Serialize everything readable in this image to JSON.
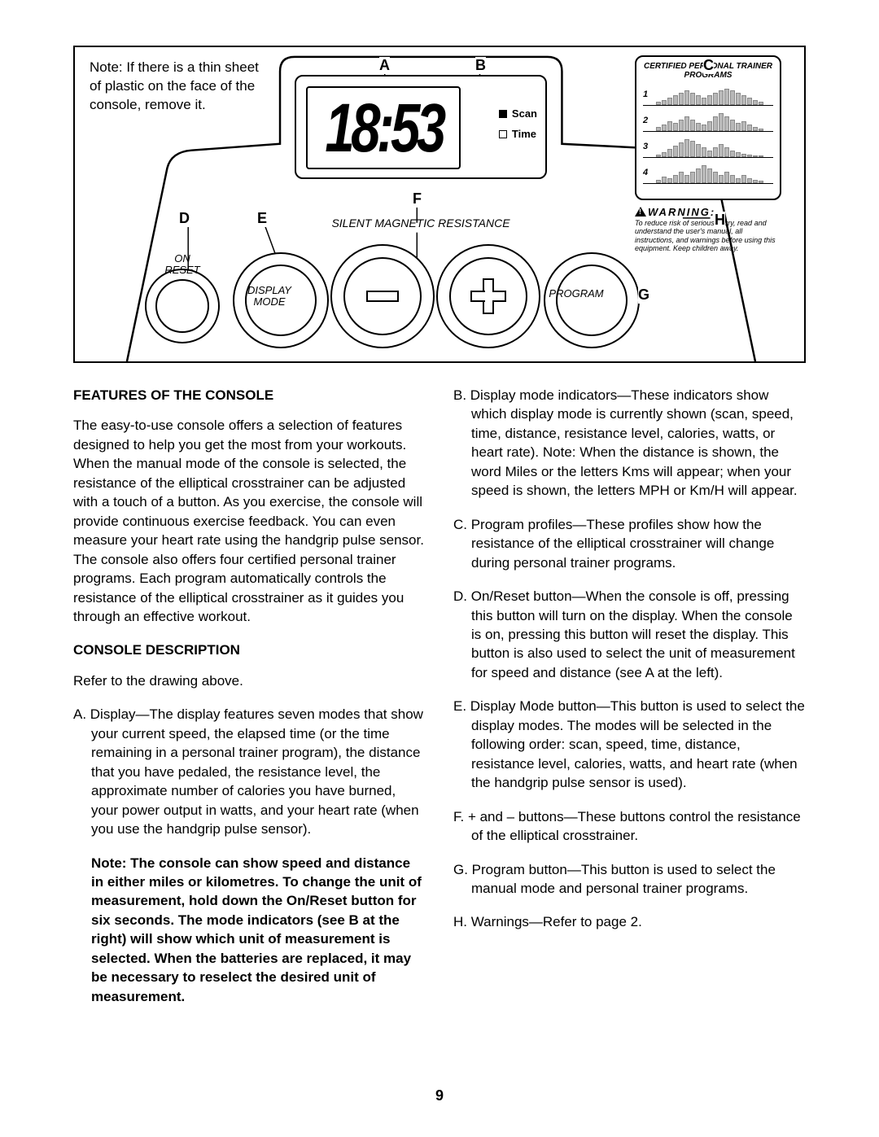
{
  "note_text": "Note: If there is a thin sheet of plastic on the face of the console, remove it.",
  "callouts": {
    "A": "A",
    "B": "B",
    "C": "C",
    "D": "D",
    "E": "E",
    "F": "F",
    "G": "G",
    "H": "H"
  },
  "display": {
    "value": "18:53",
    "scan": "Scan",
    "time": "Time"
  },
  "programs": {
    "title": "CERTIFIED PERSONAL TRAINER PROGRAMS",
    "nums": [
      "1",
      "2",
      "3",
      "4"
    ]
  },
  "warning": {
    "title": "WARNING:",
    "text": "To reduce risk of serious injury, read and understand the user's manual, all instructions, and warnings before using this equipment. Keep children away."
  },
  "smr_label": "SILENT MAGNETIC RESISTANCE",
  "btn_labels": {
    "on": "ON\nRESET",
    "disp": "DISPLAY\nMODE",
    "prog": "PROGRAM"
  },
  "headings": {
    "features": "FEATURES OF THE CONSOLE",
    "desc": "CONSOLE DESCRIPTION"
  },
  "paras": {
    "features": "The easy-to-use console offers a selection of features designed to help you get the most from your workouts. When the manual mode of the console is selected, the resistance of the elliptical crosstrainer can be adjusted with a touch of a button. As you exercise, the console will provide continuous exercise feedback. You can even measure your heart rate using the handgrip pulse sensor. The console also offers four certified personal trainer programs. Each program automatically controls the resistance of the elliptical crosstrainer as it guides you through an effective workout.",
    "refer": "Refer to the drawing above.",
    "A": "A. Display—The display features seven modes that show your current speed, the elapsed time (or the time remaining in a personal trainer program), the distance that you have pedaled, the resistance level, the approximate number of calories you have burned, your power output in watts, and your heart rate (when you use the handgrip pulse sensor).",
    "noteBold": "Note: The console can show speed and distance in either miles or kilometres. To change the unit of measurement, hold down the On/Reset button for six seconds. The mode indicators (see B at the right) will show which unit of measurement is selected. When the batteries are replaced, it may be necessary to reselect the desired unit of measurement.",
    "B": "B. Display mode indicators—These indicators show which display mode is currently shown (scan, speed, time, distance, resistance level, calories, watts, or heart rate). Note: When the distance is shown, the word Miles or the letters Kms will appear; when your speed is shown, the letters MPH or Km/H will appear.",
    "C": "C. Program profiles—These profiles show how the resistance of the elliptical crosstrainer will change during personal trainer programs.",
    "D": "D. On/Reset button—When the console is off, pressing this button will turn on the display. When the console is on, pressing this button will reset the display. This button is also used to select the unit of measurement for speed and distance (see A at the left).",
    "E": "E. Display Mode button—This button is used to select the display modes. The modes will be selected in the following order: scan, speed, time, distance, resistance level, calories, watts, and heart rate (when the handgrip pulse sensor is used).",
    "F": "F.  + and – buttons—These buttons control the resistance of the elliptical crosstrainer.",
    "G": "G. Program button—This button is used to select the manual mode and personal trainer programs.",
    "H": "H. Warnings—Refer to page 2."
  },
  "page_number": "9",
  "prog_profiles": {
    "p1": [
      4,
      6,
      9,
      12,
      15,
      18,
      15,
      12,
      9,
      12,
      15,
      18,
      20,
      18,
      15,
      12,
      9,
      6,
      4
    ],
    "p2": [
      5,
      8,
      12,
      10,
      14,
      18,
      14,
      10,
      8,
      12,
      18,
      22,
      18,
      14,
      10,
      12,
      8,
      5,
      3
    ],
    "p3": [
      3,
      6,
      10,
      14,
      18,
      22,
      20,
      16,
      12,
      8,
      12,
      16,
      12,
      8,
      6,
      4,
      3,
      2,
      2
    ],
    "p4": [
      4,
      8,
      6,
      10,
      14,
      10,
      14,
      18,
      22,
      18,
      14,
      10,
      14,
      10,
      6,
      10,
      6,
      4,
      3
    ]
  }
}
